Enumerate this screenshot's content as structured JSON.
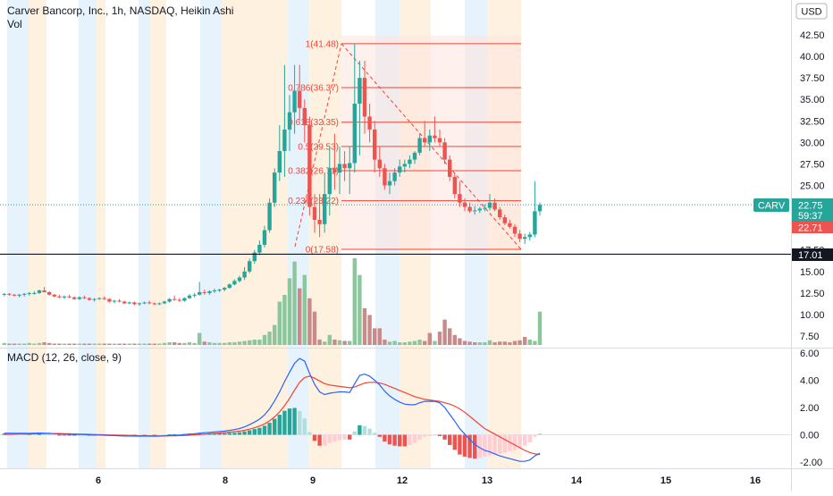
{
  "header": {
    "title": "Carver Bancorp, Inc., 1h, NASDAQ, Heikin Ashi",
    "vol_label": "Vol",
    "currency_button": "USD"
  },
  "price_scale": {
    "ticks": [
      "42.50",
      "40.00",
      "37.50",
      "35.00",
      "32.50",
      "30.00",
      "27.50",
      "25.00",
      "22.50",
      "17.50",
      "15.00",
      "12.50",
      "10.00",
      "7.50"
    ],
    "tick_values": [
      42.5,
      40,
      37.5,
      35,
      32.5,
      30,
      27.5,
      25,
      22.5,
      17.5,
      15,
      12.5,
      10,
      7.5
    ]
  },
  "badges": {
    "symbol": "CARV",
    "last_price": "22.75",
    "countdown": "59:37",
    "prev_close": "22.71",
    "hline_price": "17.01"
  },
  "fib_labels": [
    "1(41.48)",
    "0.786(36.37)",
    "0.618(32.35)",
    "0.5(29.53)",
    "0.382(26.71)",
    "0.236(23.22)",
    "0(17.58)"
  ],
  "macd": {
    "label": "MACD (12, 26, close, 9)",
    "ticks": [
      "6.00",
      "4.00",
      "2.00",
      "0.00",
      "-2.00"
    ],
    "tick_values": [
      6,
      4,
      2,
      0,
      -2
    ]
  },
  "time_axis": [
    "6",
    "8",
    "9",
    "12",
    "13",
    "14",
    "15",
    "16"
  ],
  "colors": {
    "up": "#26a69a",
    "down": "#ef5350",
    "vol_up": "#8bc79b",
    "vol_down": "#c98a8a",
    "macd_line": "#2962ff",
    "signal_line": "#f44336",
    "fib": "#f44336",
    "session_orange": "#fff1e0",
    "session_blue": "#e6f2fc"
  },
  "chart_data": {
    "type": "candlestick",
    "title": "Carver Bancorp, Inc., 1h, NASDAQ, Heikin Ashi",
    "x_tick_labels": [
      "6",
      "8",
      "9",
      "12",
      "13",
      "14",
      "15",
      "16"
    ],
    "ylim": [
      6.0,
      44.0
    ],
    "candles": [
      [
        12.3,
        12.5,
        12.1,
        12.4
      ],
      [
        12.4,
        12.5,
        12.2,
        12.3
      ],
      [
        12.3,
        12.4,
        12.1,
        12.2
      ],
      [
        12.2,
        12.4,
        12.0,
        12.3
      ],
      [
        12.3,
        12.5,
        12.1,
        12.4
      ],
      [
        12.4,
        12.6,
        12.2,
        12.5
      ],
      [
        12.5,
        12.7,
        12.3,
        12.5
      ],
      [
        12.5,
        12.9,
        12.4,
        12.8
      ],
      [
        12.8,
        13.2,
        12.6,
        12.6
      ],
      [
        12.6,
        12.7,
        12.2,
        12.3
      ],
      [
        12.3,
        12.4,
        12.0,
        12.1
      ],
      [
        12.1,
        12.3,
        11.9,
        12.0
      ],
      [
        12.0,
        12.2,
        11.8,
        12.1
      ],
      [
        12.1,
        12.3,
        11.9,
        12.0
      ],
      [
        12.0,
        12.1,
        11.7,
        11.8
      ],
      [
        11.8,
        12.1,
        11.7,
        12.0
      ],
      [
        12.0,
        12.2,
        11.8,
        11.9
      ],
      [
        11.9,
        12.0,
        11.6,
        11.7
      ],
      [
        11.7,
        11.9,
        11.5,
        11.8
      ],
      [
        11.8,
        12.0,
        11.7,
        11.9
      ],
      [
        11.9,
        12.1,
        11.7,
        11.8
      ],
      [
        11.8,
        11.9,
        11.4,
        11.5
      ],
      [
        11.5,
        11.7,
        11.3,
        11.6
      ],
      [
        11.6,
        11.8,
        11.4,
        11.5
      ],
      [
        11.5,
        11.6,
        11.2,
        11.3
      ],
      [
        11.3,
        11.5,
        11.2,
        11.4
      ],
      [
        11.4,
        11.5,
        11.1,
        11.2
      ],
      [
        11.2,
        11.4,
        11.0,
        11.3
      ],
      [
        11.3,
        11.5,
        11.2,
        11.4
      ],
      [
        11.4,
        11.6,
        11.2,
        11.3
      ],
      [
        11.3,
        11.4,
        11.1,
        11.2
      ],
      [
        11.2,
        11.4,
        11.1,
        11.3
      ],
      [
        11.3,
        11.6,
        11.2,
        11.5
      ],
      [
        11.5,
        11.9,
        11.4,
        11.8
      ],
      [
        11.8,
        12.2,
        11.6,
        11.7
      ],
      [
        11.7,
        11.9,
        11.5,
        11.6
      ],
      [
        11.6,
        12.0,
        11.5,
        11.9
      ],
      [
        11.9,
        12.4,
        11.8,
        12.2
      ],
      [
        12.2,
        12.5,
        12.0,
        12.3
      ],
      [
        12.3,
        13.8,
        12.2,
        12.6
      ],
      [
        12.6,
        12.9,
        12.3,
        12.5
      ],
      [
        12.5,
        12.8,
        12.3,
        12.7
      ],
      [
        12.7,
        13.0,
        12.5,
        12.8
      ],
      [
        12.8,
        13.0,
        12.6,
        12.9
      ],
      [
        12.9,
        13.2,
        12.7,
        13.1
      ],
      [
        13.1,
        13.6,
        13.0,
        13.5
      ],
      [
        13.5,
        14.1,
        13.4,
        13.9
      ],
      [
        13.9,
        14.5,
        13.7,
        14.3
      ],
      [
        14.3,
        15.5,
        14.0,
        15.0
      ],
      [
        15.0,
        16.5,
        14.8,
        16.2
      ],
      [
        16.2,
        17.5,
        15.9,
        17.2
      ],
      [
        17.2,
        18.6,
        16.9,
        18.1
      ],
      [
        18.1,
        20.3,
        17.8,
        19.8
      ],
      [
        19.8,
        23.5,
        19.5,
        23.0
      ],
      [
        23.0,
        27.0,
        22.5,
        26.5
      ],
      [
        26.5,
        32.0,
        25.5,
        29.0
      ],
      [
        29.0,
        39.0,
        26.0,
        31.5
      ],
      [
        31.5,
        35.5,
        29.0,
        33.5
      ],
      [
        33.5,
        39.0,
        31.0,
        36.0
      ],
      [
        36.0,
        39.0,
        32.5,
        34.0
      ],
      [
        34.0,
        35.0,
        30.0,
        32.0
      ],
      [
        32.0,
        33.0,
        21.5,
        22.5
      ],
      [
        22.5,
        24.0,
        19.5,
        21.0
      ],
      [
        21.0,
        24.0,
        19.0,
        20.5
      ],
      [
        20.5,
        26.5,
        19.5,
        24.0
      ],
      [
        24.0,
        29.5,
        21.5,
        27.0
      ],
      [
        27.0,
        31.0,
        24.5,
        26.5
      ],
      [
        26.5,
        29.5,
        24.0,
        27.5
      ],
      [
        27.5,
        29.0,
        25.5,
        27.0
      ],
      [
        27.0,
        29.5,
        24.0,
        27.6
      ],
      [
        27.6,
        41.5,
        26.5,
        34.5
      ],
      [
        34.5,
        39.5,
        28.5,
        37.5
      ],
      [
        37.5,
        39.5,
        31.0,
        33.0
      ],
      [
        33.0,
        34.5,
        30.0,
        31.5
      ],
      [
        31.5,
        32.5,
        26.5,
        28.0
      ],
      [
        28.0,
        29.5,
        26.0,
        27.0
      ],
      [
        27.0,
        27.5,
        24.5,
        25.0
      ],
      [
        25.0,
        26.5,
        24.0,
        25.5
      ],
      [
        25.5,
        27.0,
        25.0,
        26.5
      ],
      [
        26.5,
        28.0,
        26.0,
        27.2
      ],
      [
        27.2,
        28.0,
        26.5,
        27.5
      ],
      [
        27.5,
        28.5,
        27.0,
        28.0
      ],
      [
        28.0,
        29.0,
        27.5,
        28.8
      ],
      [
        28.8,
        31.0,
        28.5,
        30.5
      ],
      [
        30.5,
        32.5,
        29.5,
        30.0
      ],
      [
        30.0,
        31.5,
        29.0,
        30.8
      ],
      [
        30.8,
        33.0,
        30.0,
        30.5
      ],
      [
        30.5,
        31.5,
        29.5,
        30.0
      ],
      [
        30.0,
        30.5,
        27.5,
        28.0
      ],
      [
        28.0,
        28.5,
        25.5,
        26.0
      ],
      [
        26.0,
        26.5,
        23.5,
        24.0
      ],
      [
        24.0,
        25.5,
        22.5,
        23.0
      ],
      [
        23.0,
        23.5,
        22.0,
        22.5
      ],
      [
        22.5,
        23.0,
        21.8,
        22.0
      ],
      [
        22.0,
        22.6,
        21.6,
        22.1
      ],
      [
        22.1,
        22.5,
        21.8,
        22.3
      ],
      [
        22.3,
        22.8,
        22.0,
        22.4
      ],
      [
        22.4,
        24.0,
        22.1,
        23.0
      ],
      [
        23.0,
        23.5,
        22.0,
        22.2
      ],
      [
        22.2,
        22.5,
        21.0,
        21.3
      ],
      [
        21.3,
        21.6,
        20.4,
        20.6
      ],
      [
        20.6,
        21.0,
        20.0,
        20.2
      ],
      [
        20.2,
        20.5,
        19.0,
        19.4
      ],
      [
        19.4,
        19.8,
        18.4,
        18.8
      ],
      [
        18.8,
        19.4,
        18.2,
        19.0
      ],
      [
        19.0,
        19.6,
        18.6,
        19.3
      ],
      [
        19.3,
        25.5,
        19.0,
        22.0
      ],
      [
        22.0,
        23.0,
        21.5,
        22.75
      ]
    ],
    "volume": [
      [
        0.3,
        "up"
      ],
      [
        0.2,
        "down"
      ],
      [
        0.2,
        "down"
      ],
      [
        0.2,
        "up"
      ],
      [
        0.2,
        "up"
      ],
      [
        0.3,
        "up"
      ],
      [
        0.2,
        "up"
      ],
      [
        0.3,
        "up"
      ],
      [
        0.4,
        "down"
      ],
      [
        0.3,
        "down"
      ],
      [
        0.2,
        "down"
      ],
      [
        0.2,
        "down"
      ],
      [
        0.2,
        "up"
      ],
      [
        0.2,
        "down"
      ],
      [
        0.2,
        "down"
      ],
      [
        0.2,
        "up"
      ],
      [
        0.2,
        "down"
      ],
      [
        0.2,
        "down"
      ],
      [
        0.2,
        "up"
      ],
      [
        0.2,
        "up"
      ],
      [
        0.2,
        "down"
      ],
      [
        0.2,
        "down"
      ],
      [
        0.2,
        "up"
      ],
      [
        0.2,
        "down"
      ],
      [
        0.2,
        "down"
      ],
      [
        0.2,
        "up"
      ],
      [
        0.2,
        "down"
      ],
      [
        0.2,
        "up"
      ],
      [
        0.2,
        "up"
      ],
      [
        0.2,
        "down"
      ],
      [
        0.2,
        "down"
      ],
      [
        0.2,
        "up"
      ],
      [
        0.3,
        "up"
      ],
      [
        0.4,
        "up"
      ],
      [
        0.4,
        "down"
      ],
      [
        0.3,
        "down"
      ],
      [
        0.3,
        "up"
      ],
      [
        0.4,
        "up"
      ],
      [
        0.3,
        "up"
      ],
      [
        1.8,
        "up"
      ],
      [
        0.5,
        "down"
      ],
      [
        0.4,
        "up"
      ],
      [
        0.3,
        "up"
      ],
      [
        0.3,
        "up"
      ],
      [
        0.3,
        "up"
      ],
      [
        0.4,
        "up"
      ],
      [
        0.4,
        "up"
      ],
      [
        0.5,
        "up"
      ],
      [
        0.6,
        "up"
      ],
      [
        0.7,
        "up"
      ],
      [
        0.8,
        "up"
      ],
      [
        0.8,
        "up"
      ],
      [
        1.5,
        "up"
      ],
      [
        2.0,
        "up"
      ],
      [
        3.0,
        "up"
      ],
      [
        6.5,
        "up"
      ],
      [
        7.5,
        "up"
      ],
      [
        10.0,
        "up"
      ],
      [
        12.5,
        "up"
      ],
      [
        8.5,
        "down"
      ],
      [
        10.5,
        "up"
      ],
      [
        7.0,
        "down"
      ],
      [
        5.0,
        "down"
      ],
      [
        0.8,
        "down"
      ],
      [
        0.5,
        "up"
      ],
      [
        1.5,
        "up"
      ],
      [
        0.8,
        "down"
      ],
      [
        0.7,
        "up"
      ],
      [
        0.6,
        "down"
      ],
      [
        0.6,
        "up"
      ],
      [
        13.0,
        "up"
      ],
      [
        10.5,
        "up"
      ],
      [
        5.5,
        "down"
      ],
      [
        4.5,
        "down"
      ],
      [
        2.5,
        "down"
      ],
      [
        2.5,
        "down"
      ],
      [
        0.8,
        "down"
      ],
      [
        0.5,
        "up"
      ],
      [
        0.6,
        "up"
      ],
      [
        0.4,
        "up"
      ],
      [
        0.4,
        "up"
      ],
      [
        0.5,
        "up"
      ],
      [
        0.6,
        "up"
      ],
      [
        0.8,
        "up"
      ],
      [
        0.6,
        "down"
      ],
      [
        1.8,
        "down"
      ],
      [
        0.6,
        "up"
      ],
      [
        2.0,
        "down"
      ],
      [
        3.8,
        "down"
      ],
      [
        2.5,
        "down"
      ],
      [
        1.5,
        "down"
      ],
      [
        1.0,
        "down"
      ],
      [
        0.6,
        "down"
      ],
      [
        0.5,
        "down"
      ],
      [
        0.4,
        "down"
      ],
      [
        0.4,
        "up"
      ],
      [
        0.4,
        "up"
      ],
      [
        0.7,
        "up"
      ],
      [
        0.4,
        "down"
      ],
      [
        0.5,
        "down"
      ],
      [
        0.5,
        "down"
      ],
      [
        0.4,
        "down"
      ],
      [
        0.6,
        "down"
      ],
      [
        0.7,
        "down"
      ],
      [
        1.2,
        "down"
      ],
      [
        0.8,
        "up"
      ],
      [
        0.6,
        "up"
      ],
      [
        5.0,
        "up"
      ]
    ],
    "macd": [
      0.12,
      0.12,
      0.11,
      0.11,
      0.11,
      0.11,
      0.12,
      0.13,
      0.12,
      0.11,
      0.08,
      0.06,
      0.05,
      0.04,
      0.02,
      0.02,
      0.01,
      -0.01,
      -0.02,
      -0.02,
      -0.03,
      -0.05,
      -0.06,
      -0.07,
      -0.09,
      -0.09,
      -0.1,
      -0.1,
      -0.1,
      -0.1,
      -0.11,
      -0.1,
      -0.08,
      -0.05,
      -0.03,
      -0.02,
      0.01,
      0.05,
      0.08,
      0.12,
      0.15,
      0.18,
      0.21,
      0.24,
      0.27,
      0.32,
      0.38,
      0.46,
      0.58,
      0.74,
      0.93,
      1.15,
      1.46,
      1.9,
      2.48,
      3.15,
      3.9,
      4.6,
      5.25,
      5.6,
      5.4,
      4.5,
      3.7,
      3.15,
      2.95,
      3.05,
      3.1,
      3.15,
      3.15,
      3.1,
      3.75,
      4.35,
      4.45,
      4.3,
      4.0,
      3.65,
      3.2,
      2.85,
      2.6,
      2.4,
      2.25,
      2.2,
      2.2,
      2.35,
      2.45,
      2.45,
      2.45,
      2.35,
      2.0,
      1.5,
      1.0,
      0.45,
      0.05,
      -0.35,
      -0.7,
      -0.95,
      -1.15,
      -1.25,
      -1.4,
      -1.55,
      -1.65,
      -1.75,
      -1.85,
      -1.95,
      -1.95,
      -1.85,
      -1.55,
      -1.35
    ],
    "signal": [
      0.02,
      0.03,
      0.04,
      0.05,
      0.06,
      0.06,
      0.07,
      0.08,
      0.09,
      0.09,
      0.09,
      0.09,
      0.08,
      0.07,
      0.06,
      0.05,
      0.04,
      0.03,
      0.02,
      0.01,
      0.0,
      -0.01,
      -0.02,
      -0.03,
      -0.04,
      -0.05,
      -0.06,
      -0.07,
      -0.07,
      -0.08,
      -0.08,
      -0.09,
      -0.09,
      -0.08,
      -0.07,
      -0.06,
      -0.05,
      -0.03,
      -0.01,
      0.01,
      0.04,
      0.07,
      0.1,
      0.13,
      0.16,
      0.19,
      0.23,
      0.27,
      0.33,
      0.41,
      0.51,
      0.64,
      0.8,
      1.02,
      1.31,
      1.68,
      2.14,
      2.67,
      3.28,
      3.85,
      4.2,
      4.3,
      4.15,
      3.95,
      3.75,
      3.65,
      3.6,
      3.55,
      3.5,
      3.45,
      3.5,
      3.65,
      3.8,
      3.85,
      3.85,
      3.8,
      3.7,
      3.55,
      3.4,
      3.25,
      3.1,
      2.95,
      2.8,
      2.7,
      2.6,
      2.55,
      2.5,
      2.45,
      2.35,
      2.25,
      2.1,
      1.9,
      1.65,
      1.35,
      1.05,
      0.75,
      0.45,
      0.25,
      0.05,
      -0.15,
      -0.35,
      -0.55,
      -0.75,
      -0.95,
      -1.15,
      -1.3,
      -1.4,
      -1.45
    ],
    "macd_ylim": [
      -2.6,
      6.2
    ]
  }
}
